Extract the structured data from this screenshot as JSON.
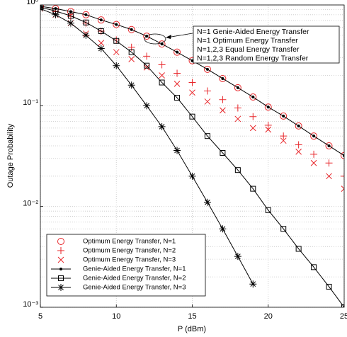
{
  "chart_data": {
    "type": "line",
    "x_label": "P (dBm)",
    "y_label": "Outage Probability",
    "x": [
      5,
      6,
      7,
      8,
      9,
      10,
      11,
      12,
      13,
      14,
      15,
      16,
      17,
      18,
      19,
      20,
      21,
      22,
      23,
      24,
      25
    ],
    "xlim": [
      5,
      25
    ],
    "xticks": [
      5,
      10,
      15,
      20,
      25
    ],
    "ylim": [
      0.001,
      1
    ],
    "yticks": [
      {
        "value": 0.001,
        "label": "10⁻³"
      },
      {
        "value": 0.01,
        "label": "10⁻²"
      },
      {
        "value": 0.1,
        "label": "10⁻¹"
      },
      {
        "value": 1,
        "label": "10⁰"
      }
    ],
    "y_scale": "log",
    "grid": true,
    "legend": "lower left",
    "series": [
      {
        "name": "Optimum Energy Transfer, N=1",
        "color": "#e8262a",
        "marker": "circle",
        "line": false,
        "values": [
          0.97,
          0.92,
          0.86,
          0.8,
          0.71,
          0.64,
          0.57,
          0.49,
          0.41,
          0.34,
          0.28,
          0.23,
          0.186,
          0.151,
          0.122,
          0.097,
          0.079,
          0.063,
          0.05,
          0.04,
          0.032
        ]
      },
      {
        "name": "Optimum Energy Transfer, N=2",
        "color": "#e8262a",
        "marker": "plus",
        "line": false,
        "values": [
          0.95,
          0.86,
          0.77,
          0.66,
          0.55,
          0.45,
          0.38,
          0.31,
          0.255,
          0.21,
          0.17,
          0.14,
          0.115,
          0.095,
          0.078,
          0.064,
          0.05,
          0.041,
          0.033,
          0.027,
          0.02
        ]
      },
      {
        "name": "Optimum Energy Transfer, N=3",
        "color": "#e8262a",
        "marker": "cross",
        "line": false,
        "values": [
          0.92,
          0.8,
          0.66,
          0.52,
          0.42,
          0.34,
          0.29,
          0.24,
          0.2,
          0.165,
          0.135,
          0.11,
          0.09,
          0.074,
          0.06,
          0.058,
          0.045,
          0.035,
          0.027,
          0.02,
          0.015
        ]
      },
      {
        "name": "Genie-Aided Energy Transfer, N=1",
        "color": "#000000",
        "marker": "dot",
        "line": true,
        "values": [
          0.97,
          0.92,
          0.86,
          0.8,
          0.71,
          0.64,
          0.57,
          0.49,
          0.41,
          0.34,
          0.28,
          0.23,
          0.186,
          0.151,
          0.122,
          0.097,
          0.079,
          0.063,
          0.05,
          0.04,
          0.032
        ]
      },
      {
        "name": "Genie-Aided Energy Transfer, N=2",
        "color": "#000000",
        "marker": "square",
        "line": true,
        "values": [
          0.95,
          0.87,
          0.78,
          0.67,
          0.55,
          0.44,
          0.34,
          0.25,
          0.17,
          0.12,
          0.078,
          0.05,
          0.034,
          0.023,
          0.015,
          0.0092,
          0.006,
          0.0038,
          0.0025,
          0.0016,
          0.001
        ]
      },
      {
        "name": "Genie-Aided Energy Transfer, N=3",
        "color": "#000000",
        "marker": "star",
        "line": true,
        "values": [
          0.92,
          0.8,
          0.66,
          0.5,
          0.37,
          0.25,
          0.16,
          0.1,
          0.062,
          0.036,
          0.02,
          0.011,
          0.006,
          0.0032,
          0.0017,
          null,
          null,
          null,
          null,
          null,
          null
        ]
      }
    ],
    "annotation": [
      "N=1 Genie-Aided Energy Transfer",
      "N=1 Optimum Energy Transfer",
      "N=1,2,3 Equal Energy Transfer",
      "N=1,2,3 Random Energy Transfer"
    ]
  }
}
